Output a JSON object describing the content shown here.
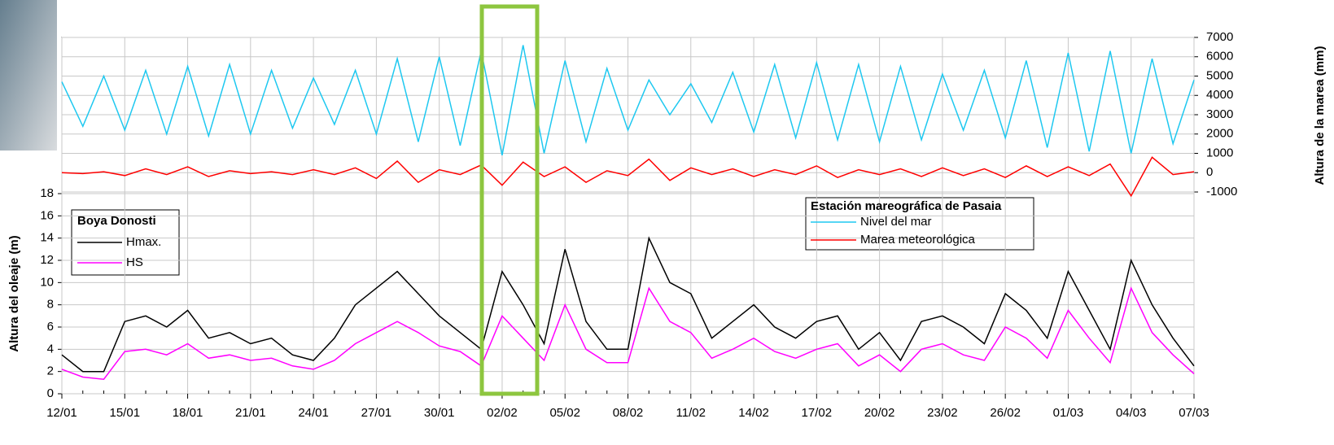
{
  "chart_data": {
    "type": "line",
    "categories": [
      "12/01",
      null,
      null,
      "15/01",
      null,
      null,
      "18/01",
      null,
      null,
      "21/01",
      null,
      null,
      "24/01",
      null,
      null,
      "27/01",
      null,
      null,
      "30/01",
      null,
      null,
      "02/02",
      null,
      null,
      "05/02",
      null,
      null,
      "08/02",
      null,
      null,
      "11/02",
      null,
      null,
      "14/02",
      null,
      null,
      "17/02",
      null,
      null,
      "20/02",
      null,
      null,
      "23/02",
      null,
      null,
      "26/02",
      null,
      null,
      "01/03",
      null,
      null,
      "04/03",
      null,
      null,
      "07/03"
    ],
    "ylabel": "Altura del oleaje (m)",
    "y2label": "Altura de la marea (mm)",
    "ylim": [
      0,
      18
    ],
    "yticks": [
      0,
      2,
      4,
      6,
      8,
      10,
      12,
      14,
      16,
      18
    ],
    "y2lim": [
      -1000,
      7000
    ],
    "y2ticks": [
      -1000,
      0,
      1000,
      2000,
      3000,
      4000,
      5000,
      6000,
      7000
    ],
    "grid": true,
    "legend_title": "Boya Donosti",
    "legend2_title": "Estación mareográfica de Pasaia",
    "series": [
      {
        "name": "Hmax.",
        "color": "#000000",
        "values": [
          3.5,
          2,
          2,
          6.5,
          7,
          6,
          7.5,
          5,
          5.5,
          4.5,
          5,
          3.5,
          3,
          5,
          8,
          9.5,
          11,
          9,
          7,
          5.5,
          4,
          11,
          8,
          4.5,
          13,
          6.5,
          4,
          4,
          14,
          10,
          9,
          5,
          6.5,
          8,
          6,
          5,
          6.5,
          7,
          4,
          5.5,
          3,
          6.5,
          7,
          6,
          4.5,
          9,
          7.5,
          5,
          11,
          7.5,
          4,
          12,
          8,
          5,
          2.5
        ]
      },
      {
        "name": "HS",
        "color": "#ff00ff",
        "values": [
          2.2,
          1.5,
          1.3,
          3.8,
          4,
          3.5,
          4.5,
          3.2,
          3.5,
          3,
          3.2,
          2.5,
          2.2,
          3,
          4.5,
          5.5,
          6.5,
          5.5,
          4.3,
          3.8,
          2.5,
          7,
          5,
          3,
          8,
          4,
          2.8,
          2.8,
          9.5,
          6.5,
          5.5,
          3.2,
          4,
          5,
          3.8,
          3.2,
          4,
          4.5,
          2.5,
          3.5,
          2,
          4,
          4.5,
          3.5,
          3,
          6,
          5,
          3.2,
          7.5,
          5,
          2.8,
          9.5,
          5.5,
          3.5,
          1.8
        ]
      },
      {
        "name": "Nivel del mar",
        "color": "#1ec8f0",
        "axis": "y2",
        "values": [
          4700,
          2400,
          5000,
          2200,
          5300,
          2000,
          5500,
          1900,
          5600,
          2000,
          5300,
          2300,
          4900,
          2500,
          5300,
          2000,
          5900,
          1600,
          6000,
          1400,
          6300,
          900,
          6600,
          1000,
          5800,
          1600,
          5400,
          2200,
          4800,
          3000,
          4600,
          2600,
          5200,
          2100,
          5600,
          1800,
          5700,
          1700,
          5600,
          1600,
          5500,
          1700,
          5100,
          2200,
          5300,
          1800,
          5800,
          1300,
          6200,
          1100,
          6300,
          1000,
          5900,
          1500,
          4800
        ]
      },
      {
        "name": "Marea meteorológica",
        "color": "#ff0000",
        "axis": "y2",
        "values": [
          0,
          -50,
          50,
          -150,
          200,
          -100,
          300,
          -200,
          100,
          -50,
          50,
          -100,
          150,
          -100,
          250,
          -300,
          600,
          -500,
          150,
          -100,
          400,
          -650,
          550,
          -200,
          300,
          -500,
          100,
          -150,
          700,
          -400,
          250,
          -100,
          200,
          -200,
          150,
          -100,
          350,
          -250,
          150,
          -100,
          200,
          -200,
          250,
          -150,
          200,
          -250,
          350,
          -200,
          300,
          -150,
          450,
          -1200,
          800,
          -100,
          50
        ]
      }
    ]
  }
}
